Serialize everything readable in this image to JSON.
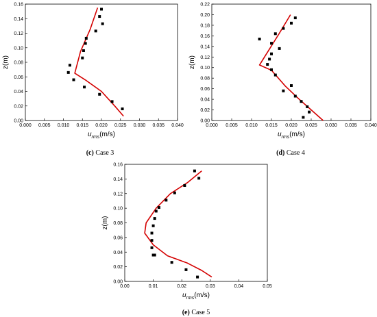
{
  "chart_data": [
    {
      "type": "scatter",
      "caption_letter": "(c)",
      "caption_text": "Case 3",
      "xlabel_main": "u",
      "xlabel_sub": "rms",
      "xlabel_unit": "(m/s)",
      "ylabel": "z(m)",
      "xlim": [
        0,
        0.04
      ],
      "ylim": [
        0,
        0.16
      ],
      "xticks": [
        "0.000",
        "0.005",
        "0.010",
        "0.015",
        "0.020",
        "0.025",
        "0.030",
        "0.035",
        "0.040"
      ],
      "yticks": [
        "0.00",
        "0.02",
        "0.04",
        "0.06",
        "0.08",
        "0.10",
        "0.12",
        "0.14",
        "0.16"
      ],
      "marker_color": "#000000",
      "line_color": "#d40000",
      "points": {
        "x": [
          0.02,
          0.0195,
          0.0203,
          0.0185,
          0.016,
          0.0158,
          0.0153,
          0.015,
          0.0117,
          0.0113,
          0.0127,
          0.0155,
          0.0195,
          0.0228,
          0.0255
        ],
        "y": [
          0.153,
          0.143,
          0.133,
          0.123,
          0.113,
          0.106,
          0.096,
          0.086,
          0.076,
          0.066,
          0.056,
          0.046,
          0.036,
          0.026,
          0.016
        ]
      },
      "line": {
        "x": [
          0.019,
          0.017,
          0.0145,
          0.013,
          0.016,
          0.02,
          0.0235,
          0.0258
        ],
        "y": [
          0.155,
          0.125,
          0.095,
          0.065,
          0.055,
          0.04,
          0.02,
          0.006
        ]
      }
    },
    {
      "type": "scatter",
      "caption_letter": "(d)",
      "caption_text": "Case 4",
      "xlabel_main": "u",
      "xlabel_sub": "rms",
      "xlabel_unit": "(m/s)",
      "ylabel": "z(m)",
      "xlim": [
        0,
        0.04
      ],
      "ylim": [
        0,
        0.22
      ],
      "xticks": [
        "0.000",
        "0.005",
        "0.010",
        "0.015",
        "0.020",
        "0.025",
        "0.030",
        "0.035",
        "0.040"
      ],
      "yticks": [
        "0.00",
        "0.02",
        "0.04",
        "0.06",
        "0.08",
        "0.10",
        "0.12",
        "0.14",
        "0.16",
        "0.18",
        "0.20",
        "0.22"
      ],
      "marker_color": "#000000",
      "line_color": "#d40000",
      "points": {
        "x": [
          0.021,
          0.02,
          0.018,
          0.016,
          0.015,
          0.012,
          0.017,
          0.015,
          0.0145,
          0.014,
          0.015,
          0.016,
          0.018,
          0.02,
          0.021,
          0.0225,
          0.024,
          0.0245,
          0.023
        ],
        "y": [
          0.194,
          0.184,
          0.174,
          0.164,
          0.146,
          0.154,
          0.136,
          0.126,
          0.116,
          0.106,
          0.096,
          0.086,
          0.056,
          0.066,
          0.046,
          0.036,
          0.026,
          0.016,
          0.006
        ]
      },
      "line": {
        "x": [
          0.0198,
          0.017,
          0.0145,
          0.012,
          0.015,
          0.0185,
          0.022,
          0.025,
          0.028
        ],
        "y": [
          0.2,
          0.165,
          0.135,
          0.105,
          0.095,
          0.065,
          0.04,
          0.02,
          0.0
        ]
      }
    },
    {
      "type": "scatter",
      "caption_letter": "(e)",
      "caption_text": "Case 5",
      "xlabel_main": "u",
      "xlabel_sub": "rms",
      "xlabel_unit": "(m/s)",
      "ylabel": "z(m)",
      "xlim": [
        0,
        0.05
      ],
      "ylim": [
        0,
        0.16
      ],
      "xticks": [
        "0.00",
        "0.01",
        "0.02",
        "0.03",
        "0.04",
        "0.05"
      ],
      "yticks": [
        "0.00",
        "0.02",
        "0.04",
        "0.06",
        "0.08",
        "0.10",
        "0.12",
        "0.14",
        "0.16"
      ],
      "marker_color": "#000000",
      "line_color": "#d40000",
      "points": {
        "x": [
          0.0245,
          0.026,
          0.021,
          0.0175,
          0.0145,
          0.012,
          0.011,
          0.0105,
          0.01,
          0.0095,
          0.0095,
          0.0095,
          0.01,
          0.0105,
          0.0165,
          0.0215,
          0.0255
        ],
        "y": [
          0.151,
          0.141,
          0.131,
          0.121,
          0.111,
          0.101,
          0.096,
          0.086,
          0.076,
          0.066,
          0.056,
          0.046,
          0.036,
          0.036,
          0.026,
          0.016,
          0.006
        ]
      },
      "line": {
        "x": [
          0.027,
          0.022,
          0.016,
          0.011,
          0.0075,
          0.007,
          0.01,
          0.015,
          0.022,
          0.027,
          0.0305
        ],
        "y": [
          0.151,
          0.135,
          0.12,
          0.1,
          0.08,
          0.066,
          0.05,
          0.035,
          0.025,
          0.015,
          0.006
        ]
      }
    }
  ]
}
